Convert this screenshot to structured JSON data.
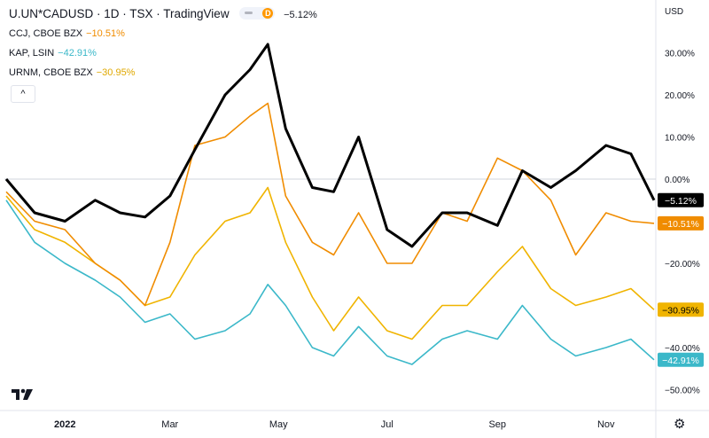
{
  "header": {
    "title": "U.UN*CADUSD · 1D · TSX · TradingView",
    "badge_letter": "D",
    "title_change": "−5.12%",
    "legend": [
      {
        "name": "CCJ, CBOE BZX",
        "change": "−10.51%",
        "color": "#f08c00"
      },
      {
        "name": "KAP, LSIN",
        "change": "−42.91%",
        "color": "#3bb8c9"
      },
      {
        "name": "URNM, CBOE BZX",
        "change": "−30.95%",
        "color": "#f0b400"
      }
    ],
    "collapse_label": "^"
  },
  "colors": {
    "main": "#000000",
    "ccj": "#f08c00",
    "kap": "#3bb8c9",
    "urnm": "#f0b400",
    "axis_text": "#131722",
    "grid": "#d1d4dc"
  },
  "icons": {
    "logo": "tradingview-logo-icon",
    "settings": "gear-icon"
  },
  "chart_data": {
    "type": "line",
    "y_unit": "USD",
    "y_scale": "percent",
    "ylim": [
      -55,
      40
    ],
    "y_ticks": [
      "30.00%",
      "20.00%",
      "10.00%",
      "0.00%",
      "−20.00%",
      "−40.00%",
      "−50.00%"
    ],
    "y_tick_values": [
      30,
      20,
      10,
      0,
      -20,
      -40,
      -50
    ],
    "x_ticks": [
      "2022",
      "Mar",
      "May",
      "Jul",
      "Sep",
      "Nov"
    ],
    "x_tick_dates": [
      "2022-01-01",
      "2022-03-01",
      "2022-05-01",
      "2022-07-01",
      "2022-09-01",
      "2022-11-01"
    ],
    "x_range": [
      "2021-11-28",
      "2022-11-29"
    ],
    "series": [
      {
        "name": "U.UN*CADUSD",
        "label": "−5.12%",
        "color": "#000000",
        "x": [
          "2021-11-29",
          "2021-12-15",
          "2022-01-01",
          "2022-01-18",
          "2022-02-01",
          "2022-02-15",
          "2022-03-01",
          "2022-03-15",
          "2022-04-01",
          "2022-04-15",
          "2022-04-25",
          "2022-05-05",
          "2022-05-20",
          "2022-06-01",
          "2022-06-15",
          "2022-07-01",
          "2022-07-15",
          "2022-08-01",
          "2022-08-15",
          "2022-09-01",
          "2022-09-15",
          "2022-10-01",
          "2022-10-15",
          "2022-11-01",
          "2022-11-15",
          "2022-11-28"
        ],
        "values": [
          0,
          -8,
          -10,
          -5,
          -8,
          -9,
          -4,
          7,
          20,
          26,
          32,
          12,
          -2,
          -3,
          10,
          -12,
          -16,
          -8,
          -8,
          -11,
          2,
          -2,
          2,
          8,
          6,
          -5
        ]
      },
      {
        "name": "CCJ, CBOE BZX",
        "label": "−10.51%",
        "color": "#f08c00",
        "x": [
          "2021-11-29",
          "2021-12-15",
          "2022-01-01",
          "2022-01-18",
          "2022-02-01",
          "2022-02-15",
          "2022-03-01",
          "2022-03-15",
          "2022-04-01",
          "2022-04-15",
          "2022-04-25",
          "2022-05-05",
          "2022-05-20",
          "2022-06-01",
          "2022-06-15",
          "2022-07-01",
          "2022-07-15",
          "2022-08-01",
          "2022-08-15",
          "2022-09-01",
          "2022-09-15",
          "2022-10-01",
          "2022-10-15",
          "2022-11-01",
          "2022-11-15",
          "2022-11-28"
        ],
        "values": [
          -3,
          -10,
          -12,
          -20,
          -24,
          -30,
          -15,
          8,
          10,
          15,
          18,
          -4,
          -15,
          -18,
          -8,
          -20,
          -20,
          -8,
          -10,
          5,
          2,
          -5,
          -18,
          -8,
          -10,
          -10.5
        ]
      },
      {
        "name": "KAP, LSIN",
        "label": "−42.91%",
        "color": "#3bb8c9",
        "x": [
          "2021-11-29",
          "2021-12-15",
          "2022-01-01",
          "2022-01-18",
          "2022-02-01",
          "2022-02-15",
          "2022-03-01",
          "2022-03-15",
          "2022-04-01",
          "2022-04-15",
          "2022-04-25",
          "2022-05-05",
          "2022-05-20",
          "2022-06-01",
          "2022-06-15",
          "2022-07-01",
          "2022-07-15",
          "2022-08-01",
          "2022-08-15",
          "2022-09-01",
          "2022-09-15",
          "2022-10-01",
          "2022-10-15",
          "2022-11-01",
          "2022-11-15",
          "2022-11-28"
        ],
        "values": [
          -5,
          -15,
          -20,
          -24,
          -28,
          -34,
          -32,
          -38,
          -36,
          -32,
          -25,
          -30,
          -40,
          -42,
          -35,
          -42,
          -44,
          -38,
          -36,
          -38,
          -30,
          -38,
          -42,
          -40,
          -38,
          -42.9
        ]
      },
      {
        "name": "URNM, CBOE BZX",
        "label": "−30.95%",
        "color": "#f0b400",
        "x": [
          "2021-11-29",
          "2021-12-15",
          "2022-01-01",
          "2022-01-18",
          "2022-02-01",
          "2022-02-15",
          "2022-03-01",
          "2022-03-15",
          "2022-04-01",
          "2022-04-15",
          "2022-04-25",
          "2022-05-05",
          "2022-05-20",
          "2022-06-01",
          "2022-06-15",
          "2022-07-01",
          "2022-07-15",
          "2022-08-01",
          "2022-08-15",
          "2022-09-01",
          "2022-09-15",
          "2022-10-01",
          "2022-10-15",
          "2022-11-01",
          "2022-11-15",
          "2022-11-28"
        ],
        "values": [
          -4,
          -12,
          -15,
          -20,
          -24,
          -30,
          -28,
          -18,
          -10,
          -8,
          -2,
          -15,
          -28,
          -36,
          -28,
          -36,
          -38,
          -30,
          -30,
          -22,
          -16,
          -26,
          -30,
          -28,
          -26,
          -31
        ]
      }
    ]
  }
}
